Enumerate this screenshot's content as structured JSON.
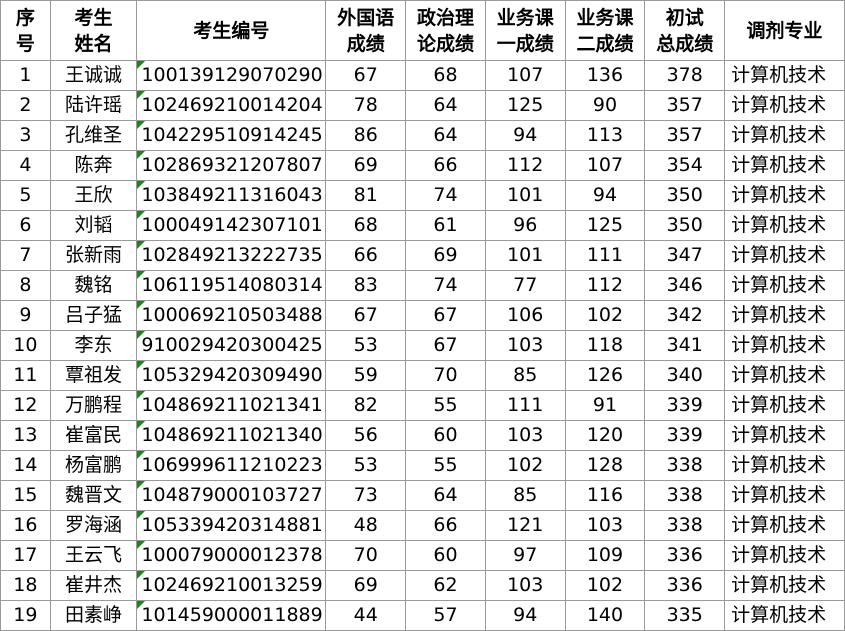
{
  "headers": [
    "序\n号",
    "考生\n姓名",
    "考生编号",
    "外国语\n成绩",
    "政治理\n论成绩",
    "业务课\n一成绩",
    "业务课\n二成绩",
    "初试\n总成绩",
    "调剂专业"
  ],
  "header_lines": [
    [
      "序",
      "号"
    ],
    [
      "考生",
      "姓名"
    ],
    [
      "考生编号"
    ],
    [
      "外国语",
      "成绩"
    ],
    [
      "政治理",
      "论成绩"
    ],
    [
      "业务课",
      "一成绩"
    ],
    [
      "业务课",
      "二成绩"
    ],
    [
      "初试",
      "总成绩"
    ],
    [
      "调剂专业"
    ]
  ],
  "rows": [
    [
      "1",
      "王诚诚",
      "100139129070290",
      "67",
      "68",
      "107",
      "136",
      "378",
      "计算机技术"
    ],
    [
      "2",
      "陆许瑶",
      "102469210014204",
      "78",
      "64",
      "125",
      "90",
      "357",
      "计算机技术"
    ],
    [
      "3",
      "孔维圣",
      "104229510914245",
      "86",
      "64",
      "94",
      "113",
      "357",
      "计算机技术"
    ],
    [
      "4",
      "陈奔",
      "102869321207807",
      "69",
      "66",
      "112",
      "107",
      "354",
      "计算机技术"
    ],
    [
      "5",
      "王欣",
      "103849211316043",
      "81",
      "74",
      "101",
      "94",
      "350",
      "计算机技术"
    ],
    [
      "6",
      "刘韬",
      "100049142307101",
      "68",
      "61",
      "96",
      "125",
      "350",
      "计算机技术"
    ],
    [
      "7",
      "张新雨",
      "102849213222735",
      "66",
      "69",
      "101",
      "111",
      "347",
      "计算机技术"
    ],
    [
      "8",
      "魏铭",
      "106119514080314",
      "83",
      "74",
      "77",
      "112",
      "346",
      "计算机技术"
    ],
    [
      "9",
      "吕子猛",
      "100069210503488",
      "67",
      "67",
      "106",
      "102",
      "342",
      "计算机技术"
    ],
    [
      "10",
      "李东",
      "910029420300425",
      "53",
      "67",
      "103",
      "118",
      "341",
      "计算机技术"
    ],
    [
      "11",
      "覃祖发",
      "105329420309490",
      "59",
      "70",
      "85",
      "126",
      "340",
      "计算机技术"
    ],
    [
      "12",
      "万鹏程",
      "104869211021341",
      "82",
      "55",
      "111",
      "91",
      "339",
      "计算机技术"
    ],
    [
      "13",
      "崔富民",
      "104869211021340",
      "56",
      "60",
      "103",
      "120",
      "339",
      "计算机技术"
    ],
    [
      "14",
      "杨富鹏",
      "106999611210223",
      "53",
      "55",
      "102",
      "128",
      "338",
      "计算机技术"
    ],
    [
      "15",
      "魏晋文",
      "104879000103727",
      "73",
      "64",
      "85",
      "116",
      "338",
      "计算机技术"
    ],
    [
      "16",
      "罗海涵",
      "105339420314881",
      "48",
      "66",
      "121",
      "103",
      "338",
      "计算机技术"
    ],
    [
      "17",
      "王云飞",
      "100079000012378",
      "70",
      "60",
      "97",
      "109",
      "336",
      "计算机技术"
    ],
    [
      "18",
      "崔井杰",
      "102469210013259",
      "69",
      "62",
      "103",
      "102",
      "336",
      "计算机技术"
    ],
    [
      "19",
      "田素峥",
      "101459000011889",
      "44",
      "57",
      "94",
      "140",
      "335",
      "计算机技术"
    ]
  ],
  "colors": {
    "text_flag_triangle": "#168a16",
    "grid": "#9a9a9a"
  }
}
